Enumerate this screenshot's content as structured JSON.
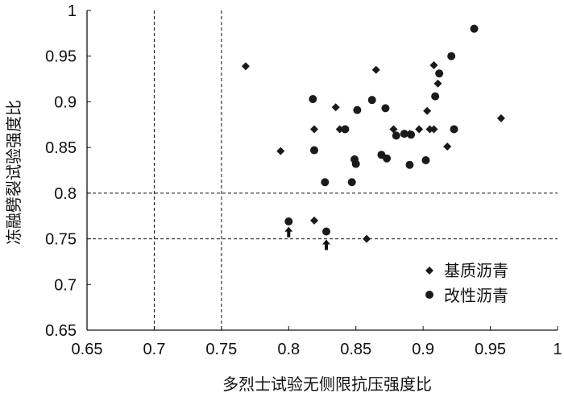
{
  "chart_data": {
    "type": "scatter",
    "xlabel": "多烈士试验无侧限抗压强度比",
    "ylabel": "冻融劈裂试验强度比",
    "xlim": [
      0.65,
      1.0
    ],
    "ylim": [
      0.65,
      1.0
    ],
    "x_ticks": [
      "0.65",
      "0.7",
      "0.75",
      "0.8",
      "0.85",
      "0.9",
      "0.95",
      "1"
    ],
    "y_ticks": [
      "0.65",
      "0.7",
      "0.75",
      "0.8",
      "0.85",
      "0.9",
      "0.95",
      "1"
    ],
    "x_tick_values": [
      0.65,
      0.7,
      0.75,
      0.8,
      0.85,
      0.9,
      0.95,
      1.0
    ],
    "y_tick_values": [
      0.65,
      0.7,
      0.75,
      0.8,
      0.85,
      0.9,
      0.95,
      1.0
    ],
    "reference_lines": {
      "vertical": [
        0.7,
        0.75
      ],
      "horizontal": [
        0.75,
        0.8
      ]
    },
    "grid": false,
    "legend_position": "bottom-right",
    "series": [
      {
        "name": "基质沥青",
        "marker": "diamond",
        "color": "#1a1a1a",
        "points": [
          [
            0.768,
            0.939
          ],
          [
            0.794,
            0.846
          ],
          [
            0.819,
            0.87
          ],
          [
            0.819,
            0.77
          ],
          [
            0.835,
            0.894
          ],
          [
            0.838,
            0.87
          ],
          [
            0.858,
            0.75
          ],
          [
            0.865,
            0.935
          ],
          [
            0.878,
            0.87
          ],
          [
            0.89,
            0.865
          ],
          [
            0.897,
            0.87
          ],
          [
            0.903,
            0.89
          ],
          [
            0.905,
            0.87
          ],
          [
            0.908,
            0.94
          ],
          [
            0.908,
            0.87
          ],
          [
            0.911,
            0.92
          ],
          [
            0.918,
            0.851
          ],
          [
            0.958,
            0.882
          ]
        ]
      },
      {
        "name": "改性沥青",
        "marker": "circle",
        "color": "#1a1a1a",
        "points": [
          [
            0.8,
            0.769
          ],
          [
            0.818,
            0.903
          ],
          [
            0.819,
            0.847
          ],
          [
            0.827,
            0.812
          ],
          [
            0.828,
            0.758
          ],
          [
            0.842,
            0.87
          ],
          [
            0.847,
            0.812
          ],
          [
            0.849,
            0.837
          ],
          [
            0.85,
            0.832
          ],
          [
            0.851,
            0.891
          ],
          [
            0.862,
            0.902
          ],
          [
            0.869,
            0.842
          ],
          [
            0.872,
            0.893
          ],
          [
            0.873,
            0.838
          ],
          [
            0.88,
            0.863
          ],
          [
            0.886,
            0.865
          ],
          [
            0.89,
            0.831
          ],
          [
            0.891,
            0.864
          ],
          [
            0.902,
            0.836
          ],
          [
            0.909,
            0.906
          ],
          [
            0.912,
            0.931
          ],
          [
            0.921,
            0.95
          ],
          [
            0.923,
            0.87
          ],
          [
            0.938,
            0.98
          ]
        ]
      }
    ],
    "arrows": [
      {
        "x": 0.8,
        "y": 0.757
      },
      {
        "x": 0.828,
        "y": 0.743
      }
    ]
  }
}
